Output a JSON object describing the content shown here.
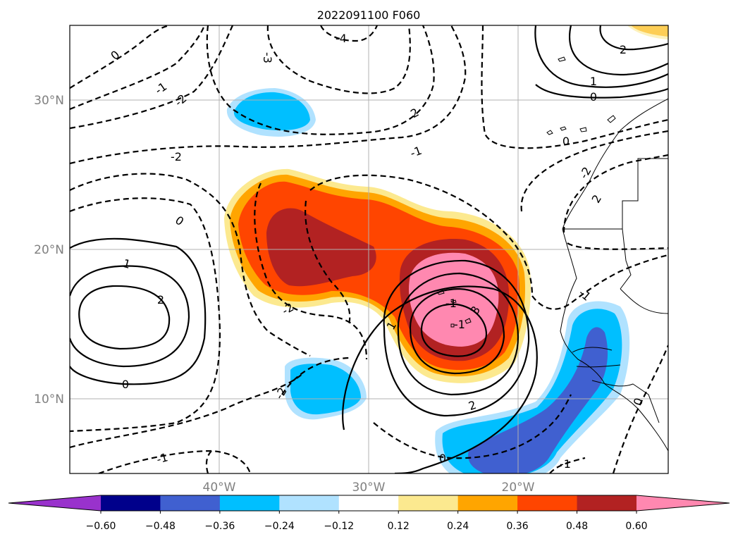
{
  "chart_data": {
    "type": "heatmap",
    "title": "2022091100 F060",
    "x_ticks": [
      "40°W",
      "30°W",
      "20°W"
    ],
    "x_tick_values": [
      -40,
      -30,
      -20
    ],
    "y_ticks": [
      "30°N",
      "20°N",
      "10°N"
    ],
    "y_tick_values": [
      30,
      20,
      10
    ],
    "lon_range": [
      -50,
      -10
    ],
    "lat_range": [
      5,
      35
    ],
    "grid": true,
    "colorbar": {
      "orientation": "horizontal",
      "extend": "both",
      "boundaries": [
        "−0.60",
        "−0.48",
        "−0.36",
        "−0.24",
        "−0.12",
        "0.12",
        "0.24",
        "0.36",
        "0.48",
        "0.60"
      ],
      "colors": [
        "#9932cc",
        "#00008b",
        "#4060d0",
        "#00bfff",
        "#b0e2ff",
        "#ffffff",
        "#fce98f",
        "#ffa500",
        "#ff4500",
        "#b22222",
        "#ff88b0"
      ]
    },
    "contour_labels": [
      "0",
      "-1",
      "-2",
      "-3",
      "-4",
      "2",
      "-2",
      "0",
      "-1",
      "1",
      "2",
      "0",
      "-2",
      "-2",
      "0",
      "1",
      "2",
      "0",
      "-1",
      "-1",
      "-2",
      "-1",
      "0",
      "1",
      "2",
      "3",
      "2",
      "0",
      "-1",
      "-1"
    ]
  }
}
